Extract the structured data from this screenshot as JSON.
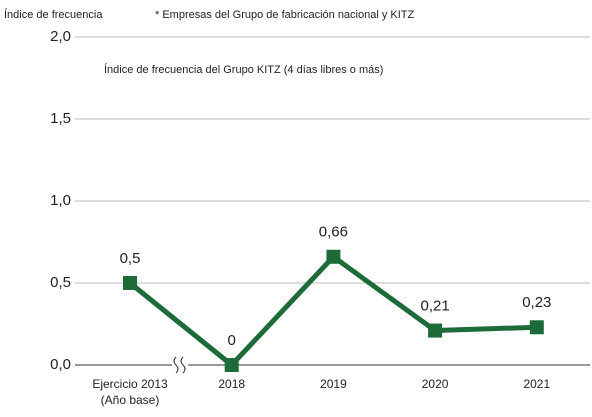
{
  "chart_data": {
    "type": "line",
    "y_label": "Índice de frecuencia",
    "note": "* Empresas del Grupo de fabricación nacional y KITZ",
    "categories": [
      "Ejercicio 2013\n(Año base)",
      "2018",
      "2019",
      "2020",
      "2021"
    ],
    "series": [
      {
        "name": "Índice de frecuencia del Grupo KITZ (4 días libres o más)",
        "color": "#1e6b3a",
        "values": [
          0.5,
          0,
          0.66,
          0.21,
          0.23
        ],
        "value_labels": [
          "0,5",
          "0",
          "0,66",
          "0,21",
          "0,23"
        ]
      }
    ],
    "ylim": [
      0,
      2
    ],
    "yticks": [
      {
        "value": 0,
        "label": "0,0"
      },
      {
        "value": 0.5,
        "label": "0,5"
      },
      {
        "value": 1,
        "label": "1,0"
      },
      {
        "value": 1.5,
        "label": "1,5"
      },
      {
        "value": 2,
        "label": "2,0"
      }
    ],
    "grid": true
  }
}
